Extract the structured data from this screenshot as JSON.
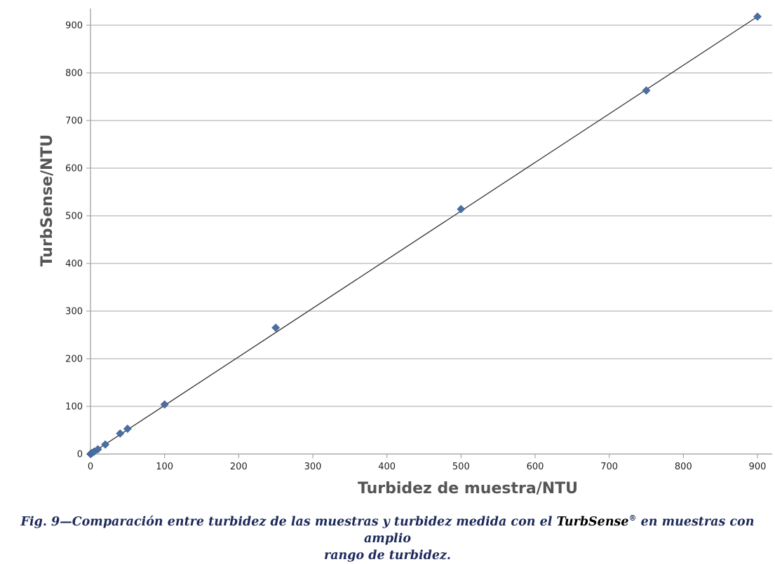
{
  "chart_data": {
    "type": "scatter",
    "xlabel": "Turbidez de muestra/NTU",
    "ylabel": "TurbSense/NTU",
    "xlim": [
      0,
      900
    ],
    "ylim": [
      0,
      900
    ],
    "xticks": [
      0,
      100,
      200,
      300,
      400,
      500,
      600,
      700,
      800,
      900
    ],
    "yticks": [
      0,
      100,
      200,
      300,
      400,
      500,
      600,
      700,
      800,
      900
    ],
    "grid": "horizontal",
    "legend": "none",
    "series": [
      {
        "marker": "diamond",
        "color": "#4a6fa5",
        "x": [
          0,
          1,
          2,
          5,
          10,
          20,
          40,
          50,
          100,
          250,
          500,
          750,
          900
        ],
        "y": [
          0,
          1,
          2,
          5,
          10,
          20,
          43,
          53,
          104,
          265,
          514,
          763,
          918
        ]
      }
    ],
    "trendline": {
      "type": "linear",
      "color": "#333333",
      "x": [
        0,
        900
      ],
      "y": [
        0,
        918
      ]
    }
  },
  "caption": {
    "before": "Fig. 9—Comparación entre turbidez de las muestras y turbidez medida con el ",
    "brand": "TurbSense",
    "mark": "®",
    "after": " en muestras con amplio",
    "line2": "rango de turbidez."
  }
}
